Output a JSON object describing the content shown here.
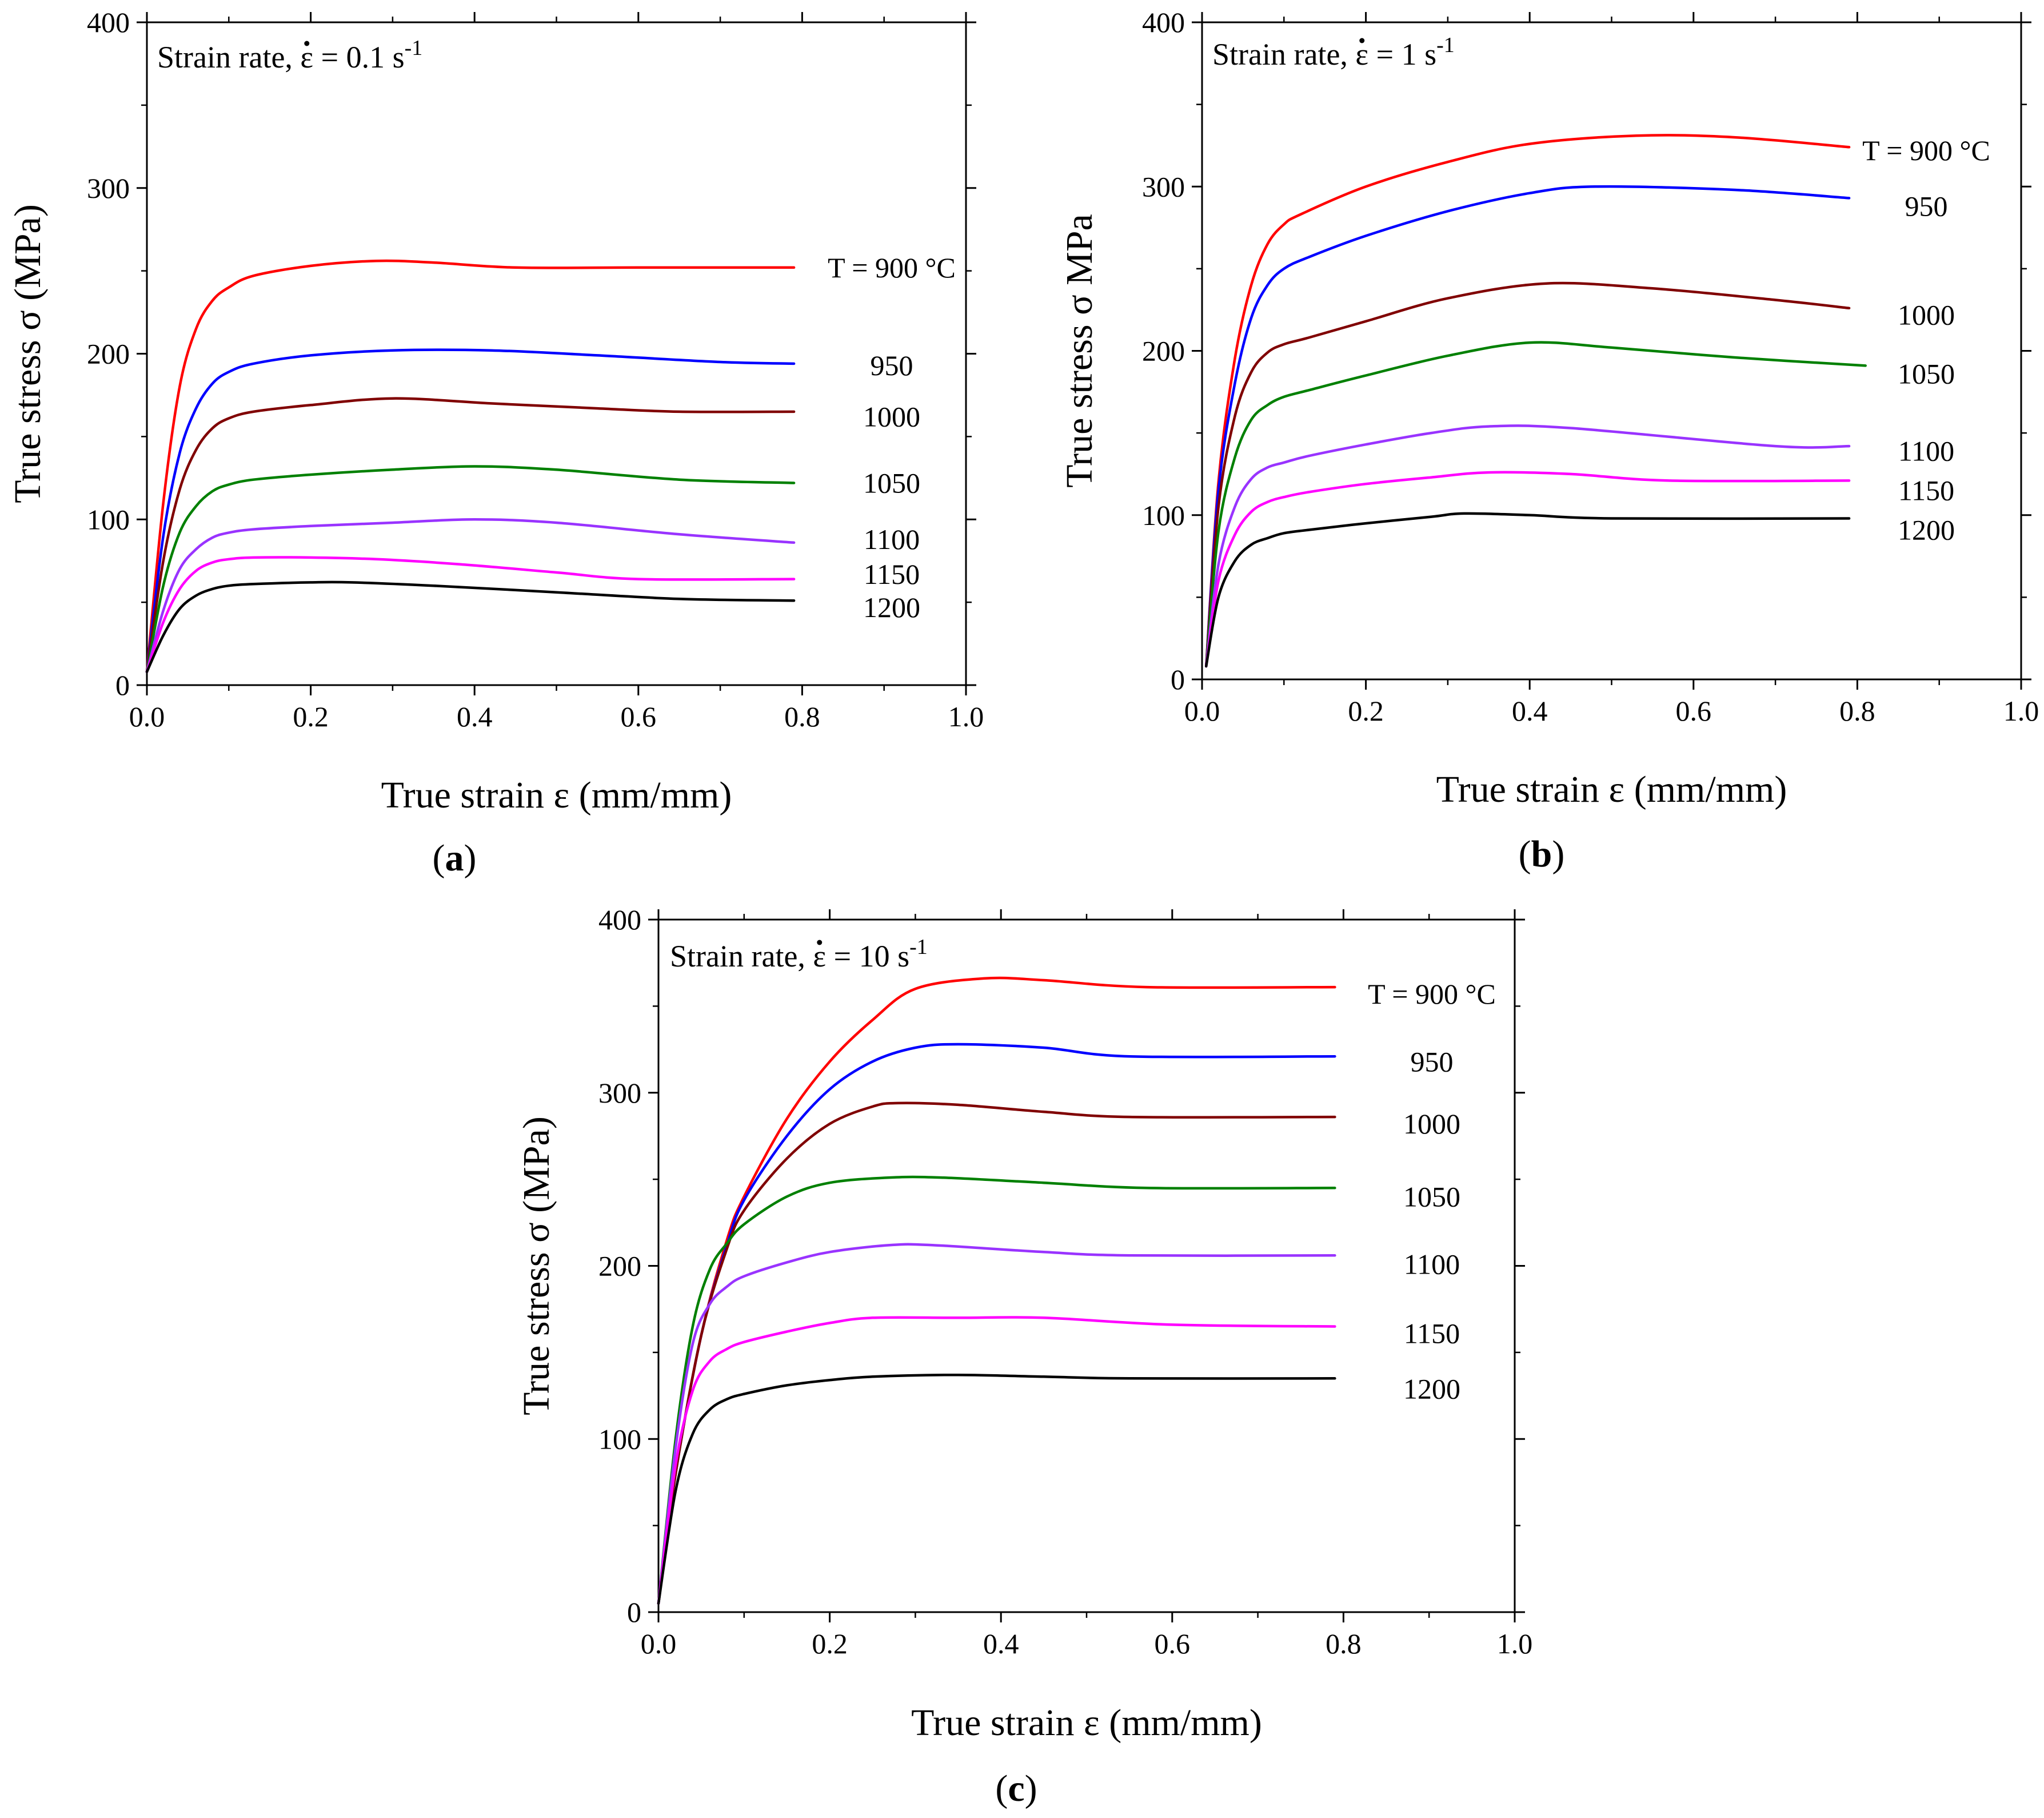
{
  "figure": {
    "panels": [
      {
        "letter": "a"
      },
      {
        "letter": "b"
      },
      {
        "letter": "c"
      }
    ]
  },
  "chart_data": [
    {
      "type": "line",
      "panel": "a",
      "title": "",
      "annotation": {
        "prefix": "Strain rate, ",
        "symbol": "ε",
        "value": " = 0.1 s",
        "exponent": "-1"
      },
      "xlabel": "True strain ε (mm/mm)",
      "ylabel": "True stress σ (MPa)",
      "xlim": [
        0,
        1.0
      ],
      "ylim": [
        0,
        400
      ],
      "xticks": [
        "0.0",
        "0.2",
        "0.4",
        "0.6",
        "0.8",
        "1.0"
      ],
      "yticks": [
        "0",
        "100",
        "200",
        "300",
        "400"
      ],
      "grid": false,
      "series": [
        {
          "name": "T = 900 °C",
          "color": "#ff0000",
          "label_y": 252,
          "x": [
            0.0,
            0.02,
            0.04,
            0.06,
            0.08,
            0.1,
            0.13,
            0.2,
            0.28,
            0.35,
            0.45,
            0.6,
            0.79
          ],
          "y": [
            8,
            110,
            180,
            215,
            232,
            240,
            247,
            253,
            256,
            255,
            252,
            252,
            252
          ]
        },
        {
          "name": "950",
          "color": "#0000ff",
          "label_y": 193,
          "x": [
            0.0,
            0.02,
            0.04,
            0.06,
            0.08,
            0.1,
            0.13,
            0.2,
            0.3,
            0.42,
            0.55,
            0.7,
            0.79
          ],
          "y": [
            8,
            90,
            140,
            167,
            182,
            189,
            194,
            199,
            202,
            202,
            199,
            195,
            194
          ]
        },
        {
          "name": "1000",
          "color": "#800000",
          "label_y": 162,
          "x": [
            0.0,
            0.02,
            0.04,
            0.06,
            0.08,
            0.1,
            0.13,
            0.2,
            0.3,
            0.42,
            0.55,
            0.65,
            0.79
          ],
          "y": [
            8,
            75,
            118,
            142,
            155,
            161,
            165,
            169,
            173,
            170,
            167,
            165,
            165
          ]
        },
        {
          "name": "1050",
          "color": "#008000",
          "label_y": 122,
          "x": [
            0.0,
            0.02,
            0.04,
            0.06,
            0.08,
            0.1,
            0.13,
            0.2,
            0.3,
            0.4,
            0.5,
            0.65,
            0.79
          ],
          "y": [
            8,
            60,
            92,
            108,
            117,
            121,
            124,
            127,
            130,
            132,
            130,
            124,
            122
          ]
        },
        {
          "name": "1100",
          "color": "#9933ff",
          "label_y": 88,
          "x": [
            0.0,
            0.02,
            0.04,
            0.06,
            0.08,
            0.1,
            0.13,
            0.2,
            0.3,
            0.4,
            0.5,
            0.65,
            0.79
          ],
          "y": [
            8,
            45,
            70,
            82,
            89,
            92,
            94,
            96,
            98,
            100,
            98,
            91,
            86
          ]
        },
        {
          "name": "1150",
          "color": "#ff00ff",
          "label_y": 67,
          "x": [
            0.0,
            0.02,
            0.04,
            0.06,
            0.08,
            0.1,
            0.13,
            0.2,
            0.28,
            0.38,
            0.5,
            0.6,
            0.79
          ],
          "y": [
            8,
            38,
            58,
            69,
            74,
            76,
            77,
            77,
            76,
            73,
            68,
            64,
            64
          ]
        },
        {
          "name": "1200",
          "color": "#000000",
          "label_y": 47,
          "x": [
            0.0,
            0.02,
            0.04,
            0.06,
            0.08,
            0.1,
            0.13,
            0.2,
            0.25,
            0.35,
            0.5,
            0.65,
            0.79
          ],
          "y": [
            8,
            30,
            46,
            54,
            58,
            60,
            61,
            62,
            62,
            60,
            56,
            52,
            51
          ]
        }
      ]
    },
    {
      "type": "line",
      "panel": "b",
      "title": "",
      "annotation": {
        "prefix": "Strain rate, ",
        "symbol": "ε",
        "value": " = 1 s",
        "exponent": "-1"
      },
      "xlabel": "True strain ε (mm/mm)",
      "ylabel": "True stress σ MPa",
      "xlim": [
        0,
        1.0
      ],
      "ylim": [
        0,
        400
      ],
      "xticks": [
        "0.0",
        "0.2",
        "0.4",
        "0.6",
        "0.8",
        "1.0"
      ],
      "yticks": [
        "0",
        "100",
        "200",
        "300",
        "400"
      ],
      "grid": false,
      "series": [
        {
          "name": "T = 900 °C",
          "color": "#ff0000",
          "label_y": 322,
          "x": [
            0.005,
            0.02,
            0.04,
            0.06,
            0.08,
            0.1,
            0.12,
            0.2,
            0.3,
            0.4,
            0.53,
            0.65,
            0.79
          ],
          "y": [
            8,
            120,
            195,
            240,
            265,
            277,
            283,
            300,
            315,
            326,
            331,
            330,
            324
          ]
        },
        {
          "name": "950",
          "color": "#0000ff",
          "label_y": 288,
          "x": [
            0.005,
            0.02,
            0.04,
            0.06,
            0.08,
            0.1,
            0.13,
            0.2,
            0.3,
            0.4,
            0.48,
            0.65,
            0.79
          ],
          "y": [
            8,
            115,
            180,
            220,
            240,
            250,
            257,
            270,
            285,
            296,
            300,
            298,
            293
          ]
        },
        {
          "name": "1000",
          "color": "#800000",
          "label_y": 222,
          "x": [
            0.005,
            0.02,
            0.04,
            0.06,
            0.08,
            0.1,
            0.13,
            0.2,
            0.3,
            0.42,
            0.55,
            0.7,
            0.79
          ],
          "y": [
            8,
            105,
            160,
            187,
            199,
            204,
            208,
            218,
            232,
            241,
            238,
            231,
            226
          ]
        },
        {
          "name": "1050",
          "color": "#008000",
          "label_y": 186,
          "x": [
            0.005,
            0.02,
            0.04,
            0.06,
            0.08,
            0.1,
            0.13,
            0.2,
            0.3,
            0.4,
            0.5,
            0.65,
            0.81
          ],
          "y": [
            8,
            90,
            135,
            158,
            167,
            172,
            176,
            185,
            197,
            205,
            202,
            196,
            191
          ]
        },
        {
          "name": "1100",
          "color": "#9933ff",
          "label_y": 139,
          "x": [
            0.005,
            0.02,
            0.04,
            0.06,
            0.08,
            0.1,
            0.13,
            0.2,
            0.28,
            0.35,
            0.45,
            0.7,
            0.79
          ],
          "y": [
            8,
            70,
            105,
            122,
            129,
            132,
            136,
            143,
            150,
            154,
            153,
            142,
            142
          ]
        },
        {
          "name": "1150",
          "color": "#ff00ff",
          "label_y": 115,
          "x": [
            0.005,
            0.02,
            0.04,
            0.06,
            0.08,
            0.1,
            0.13,
            0.2,
            0.28,
            0.35,
            0.45,
            0.57,
            0.79
          ],
          "y": [
            8,
            60,
            88,
            102,
            108,
            111,
            114,
            119,
            123,
            126,
            125,
            121,
            121
          ]
        },
        {
          "name": "1200",
          "color": "#000000",
          "label_y": 91,
          "x": [
            0.005,
            0.02,
            0.04,
            0.06,
            0.08,
            0.1,
            0.13,
            0.2,
            0.28,
            0.32,
            0.4,
            0.5,
            0.79
          ],
          "y": [
            8,
            50,
            72,
            82,
            86,
            89,
            91,
            95,
            99,
            101,
            100,
            98,
            98
          ]
        }
      ]
    },
    {
      "type": "line",
      "panel": "c",
      "title": "",
      "annotation": {
        "prefix": "Strain rate, ",
        "symbol": "ε",
        "value": " = 10 s",
        "exponent": "-1"
      },
      "xlabel": "True strain ε (mm/mm)",
      "ylabel": "True stress σ (MPa)",
      "xlim": [
        0,
        1.0
      ],
      "ylim": [
        0,
        400
      ],
      "xticks": [
        "0.0",
        "0.2",
        "0.4",
        "0.6",
        "0.8",
        "1.0"
      ],
      "yticks": [
        "0",
        "100",
        "200",
        "300",
        "400"
      ],
      "grid": false,
      "series": [
        {
          "name": "T = 900 °C",
          "color": "#ff0000",
          "label_y": 357,
          "x": [
            0.0,
            0.02,
            0.05,
            0.08,
            0.1,
            0.15,
            0.2,
            0.25,
            0.3,
            0.38,
            0.45,
            0.57,
            0.79
          ],
          "y": [
            5,
            80,
            160,
            215,
            240,
            285,
            318,
            342,
            360,
            366,
            365,
            361,
            361
          ]
        },
        {
          "name": "950",
          "color": "#0000ff",
          "label_y": 318,
          "x": [
            0.0,
            0.02,
            0.05,
            0.08,
            0.1,
            0.15,
            0.2,
            0.25,
            0.3,
            0.35,
            0.45,
            0.55,
            0.79
          ],
          "y": [
            5,
            80,
            160,
            212,
            238,
            275,
            302,
            318,
            326,
            328,
            326,
            321,
            321
          ]
        },
        {
          "name": "1000",
          "color": "#800000",
          "label_y": 282,
          "x": [
            0.0,
            0.02,
            0.05,
            0.08,
            0.1,
            0.15,
            0.2,
            0.25,
            0.28,
            0.35,
            0.45,
            0.55,
            0.79
          ],
          "y": [
            5,
            80,
            160,
            210,
            232,
            262,
            282,
            292,
            294,
            293,
            289,
            286,
            286
          ]
        },
        {
          "name": "1050",
          "color": "#008000",
          "label_y": 240,
          "x": [
            0.0,
            0.02,
            0.04,
            0.06,
            0.08,
            0.1,
            0.15,
            0.2,
            0.27,
            0.33,
            0.45,
            0.57,
            0.79
          ],
          "y": [
            5,
            100,
            165,
            198,
            213,
            224,
            240,
            248,
            251,
            251,
            248,
            245,
            245
          ]
        },
        {
          "name": "1100",
          "color": "#9933ff",
          "label_y": 201,
          "x": [
            0.0,
            0.02,
            0.04,
            0.06,
            0.08,
            0.1,
            0.15,
            0.2,
            0.27,
            0.32,
            0.45,
            0.55,
            0.79
          ],
          "y": [
            5,
            95,
            155,
            178,
            188,
            194,
            202,
            208,
            212,
            212,
            208,
            206,
            206
          ]
        },
        {
          "name": "1150",
          "color": "#ff00ff",
          "label_y": 161,
          "x": [
            0.0,
            0.02,
            0.04,
            0.06,
            0.08,
            0.1,
            0.15,
            0.2,
            0.25,
            0.35,
            0.45,
            0.6,
            0.79
          ],
          "y": [
            5,
            85,
            128,
            145,
            152,
            156,
            162,
            167,
            170,
            170,
            170,
            166,
            165
          ]
        },
        {
          "name": "1200",
          "color": "#000000",
          "label_y": 129,
          "x": [
            0.0,
            0.02,
            0.04,
            0.06,
            0.08,
            0.1,
            0.15,
            0.2,
            0.25,
            0.35,
            0.45,
            0.55,
            0.79
          ],
          "y": [
            5,
            70,
            103,
            117,
            123,
            126,
            131,
            134,
            136,
            137,
            136,
            135,
            135
          ]
        }
      ]
    }
  ]
}
